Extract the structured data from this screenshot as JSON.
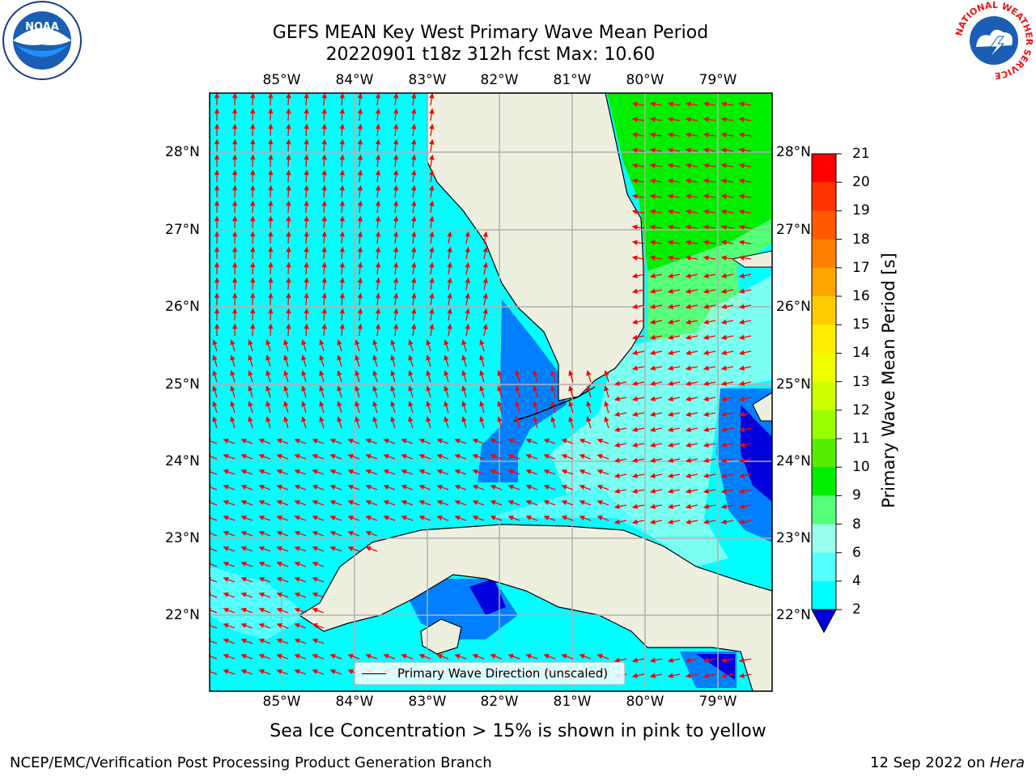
{
  "header": {
    "title_line1": "GEFS MEAN Key West Primary Wave Mean Period",
    "title_line2": "20220901 t18z 312h fcst   Max: 10.60"
  },
  "axes": {
    "lon_labels": [
      "85°W",
      "84°W",
      "83°W",
      "82°W",
      "81°W",
      "80°W",
      "79°W"
    ],
    "lat_labels": [
      "28°N",
      "27°N",
      "26°N",
      "25°N",
      "24°N",
      "23°N",
      "22°N"
    ]
  },
  "colorbar": {
    "title": "Primary Wave Mean Period [s]",
    "ticks": [
      "21",
      "20",
      "19",
      "18",
      "17",
      "16",
      "15",
      "14",
      "13",
      "12",
      "11",
      "10",
      "9",
      "8",
      "6",
      "4",
      "2"
    ],
    "colors": [
      "#ff0000",
      "#ff3300",
      "#ff5a00",
      "#ff8000",
      "#ffa500",
      "#ffcc00",
      "#ffee00",
      "#f0ff00",
      "#ccff00",
      "#99ff00",
      "#55ee00",
      "#00ee00",
      "#55ff77",
      "#99ffee",
      "#55ffff",
      "#00ffff",
      "#0080ff"
    ],
    "extend_color": "#0000dd"
  },
  "map": {
    "ocean_color": "#00ffff",
    "land_color": "#efefe0",
    "arrow_color": "#ff0000"
  },
  "legend": {
    "label": "Primary Wave Direction (unscaled)"
  },
  "footer": {
    "ice_note": "Sea Ice Concentration > 15% is shown in pink to yellow",
    "credit": "NCEP/EMC/Verification Post Processing Product Generation Branch",
    "date": "12 Sep 2022 on ",
    "host": "Hera"
  },
  "logos": {
    "noaa": "NOAA",
    "nws": "NATIONAL WEATHER SERVICE"
  }
}
